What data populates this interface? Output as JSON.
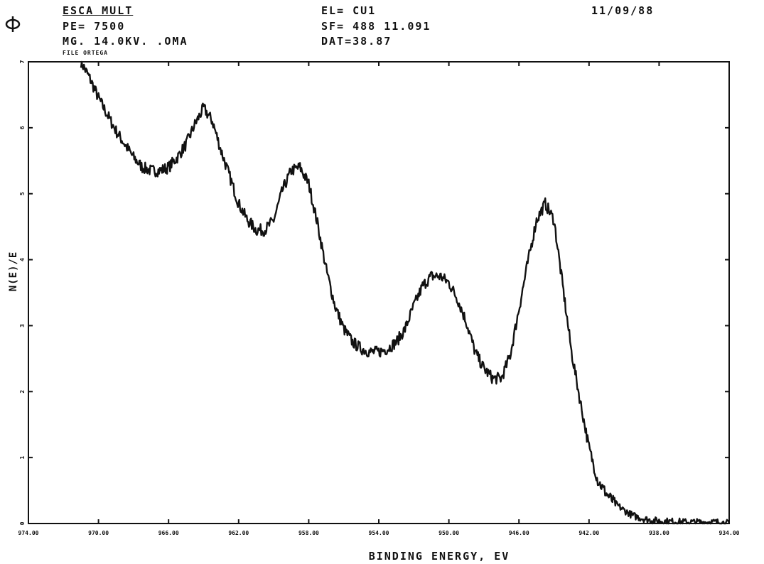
{
  "header": {
    "title": "ESCA MULT",
    "pe": "PE= 7500",
    "mg": "MG. 14.0KV. .OMA",
    "file": "FILE ORTEGA",
    "element": "EL= CU1",
    "sf": "SF= 488 11.091",
    "dat": "DAT=38.87",
    "date": "11/09/88"
  },
  "chart_data": {
    "type": "line",
    "title": "",
    "xlabel": "BINDING ENERGY, EV",
    "ylabel": "N(E)/E",
    "xlim": [
      974.0,
      934.0
    ],
    "x_reversed": true,
    "x_ticks": [
      "974.00",
      "970.00",
      "966.00",
      "962.00",
      "958.00",
      "954.00",
      "950.00",
      "946.00",
      "942.00",
      "938.00",
      "934.00"
    ],
    "y_ticks": [
      "0",
      "1",
      "2",
      "3",
      "4",
      "5",
      "6",
      "7"
    ],
    "ylim": [
      0,
      7
    ],
    "grid": false,
    "series": [
      {
        "x": [
          971.0,
          970.5,
          970.0,
          969.5,
          969.0,
          968.5,
          968.0,
          967.5,
          967.0,
          966.5,
          966.0,
          965.5,
          965.0,
          964.5,
          964.0,
          963.5,
          963.0,
          962.5,
          962.0,
          961.5,
          961.0,
          960.5,
          960.0,
          959.5,
          959.0,
          958.5,
          958.0,
          957.5,
          957.0,
          956.5,
          956.0,
          955.5,
          955.0,
          954.5,
          954.0,
          953.5,
          953.0,
          952.5,
          952.0,
          951.5,
          951.0,
          950.5,
          950.0,
          949.5,
          949.0,
          948.5,
          948.0,
          947.5,
          947.0,
          946.5,
          946.0,
          945.5,
          945.0,
          944.5,
          944.0,
          943.5,
          943.0,
          942.5,
          942.0,
          941.5,
          941.0,
          940.5,
          940.0,
          939.5,
          939.0,
          938.5,
          938.0,
          937.5,
          937.0,
          936.5,
          936.0,
          935.5,
          935.0,
          934.5,
          934.0
        ],
        "y": [
          7.0,
          6.75,
          6.45,
          6.2,
          5.95,
          5.75,
          5.55,
          5.4,
          5.35,
          5.35,
          5.4,
          5.55,
          5.75,
          6.05,
          6.3,
          6.1,
          5.65,
          5.25,
          4.85,
          4.6,
          4.45,
          4.45,
          4.6,
          5.05,
          5.35,
          5.4,
          5.15,
          4.55,
          3.85,
          3.3,
          2.95,
          2.75,
          2.65,
          2.6,
          2.6,
          2.65,
          2.75,
          2.95,
          3.3,
          3.6,
          3.75,
          3.75,
          3.65,
          3.4,
          3.05,
          2.6,
          2.35,
          2.2,
          2.2,
          2.55,
          3.25,
          3.95,
          4.6,
          4.85,
          4.6,
          3.6,
          2.6,
          1.85,
          1.15,
          0.65,
          0.45,
          0.3,
          0.2,
          0.12,
          0.08,
          0.05,
          0.04,
          0.03,
          0.03,
          0.02,
          0.02,
          0.02,
          0.02,
          0.02,
          0.0
        ]
      }
    ]
  }
}
